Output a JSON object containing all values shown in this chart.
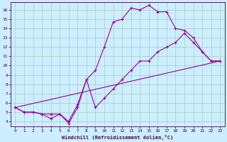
{
  "xlabel": "Windchill (Refroidissement éolien,°C)",
  "bg_color": "#cceeff",
  "grid_color": "#aaccbb",
  "line_color": "#990099",
  "xlim": [
    -0.5,
    23.5
  ],
  "ylim": [
    3.5,
    16.8
  ],
  "xticks": [
    0,
    1,
    2,
    3,
    4,
    5,
    6,
    7,
    8,
    9,
    10,
    11,
    12,
    13,
    14,
    15,
    16,
    17,
    18,
    19,
    20,
    21,
    22,
    23
  ],
  "yticks": [
    4,
    5,
    6,
    7,
    8,
    9,
    10,
    11,
    12,
    13,
    14,
    15,
    16
  ],
  "curve1_x": [
    0,
    1,
    2,
    3,
    4,
    5,
    6,
    7,
    8,
    9,
    10,
    11,
    12,
    13,
    14,
    15,
    16,
    17,
    18,
    19,
    20,
    21,
    22,
    23
  ],
  "curve1_y": [
    5.5,
    5.0,
    5.0,
    4.8,
    4.8,
    4.8,
    4.0,
    5.8,
    8.5,
    9.5,
    12.0,
    14.7,
    15.0,
    16.2,
    16.0,
    16.5,
    15.8,
    15.8,
    14.0,
    13.8,
    13.0,
    11.5,
    10.5,
    10.5
  ],
  "curve2_x": [
    0,
    1,
    2,
    3,
    4,
    5,
    6,
    7,
    8,
    9,
    10,
    11,
    12,
    13,
    14,
    15,
    16,
    17,
    18,
    19,
    20,
    21,
    22,
    23
  ],
  "curve2_y": [
    5.5,
    5.0,
    5.0,
    4.8,
    4.3,
    4.8,
    3.8,
    5.5,
    8.5,
    5.5,
    6.5,
    7.5,
    8.5,
    9.5,
    10.5,
    10.5,
    11.5,
    12.0,
    12.5,
    13.5,
    12.5,
    11.5,
    10.5,
    10.5
  ],
  "curve3_x": [
    0,
    23
  ],
  "curve3_y": [
    5.5,
    10.5
  ]
}
